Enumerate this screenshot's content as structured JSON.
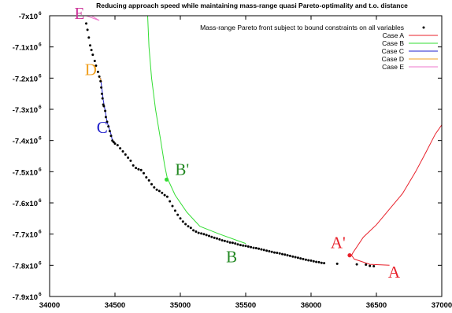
{
  "chart_data": {
    "type": "scatter",
    "title": "Reducing approach speed while maintaining mass-range quasi Pareto-optimality and t.o. distance",
    "xlabel": "",
    "ylabel": "",
    "xlim": [
      34000,
      37000
    ],
    "ylim": [
      -7900000,
      -7000000
    ],
    "x_ticks": [
      {
        "value": 34000,
        "label": "34000"
      },
      {
        "value": 34500,
        "label": "34500"
      },
      {
        "value": 35000,
        "label": "35000"
      },
      {
        "value": 35500,
        "label": "35500"
      },
      {
        "value": 36000,
        "label": "36000"
      },
      {
        "value": 36500,
        "label": "36500"
      },
      {
        "value": 37000,
        "label": "37000"
      }
    ],
    "y_ticks": [
      {
        "value": -7000000,
        "base": "-7x10",
        "exp": "6"
      },
      {
        "value": -7100000,
        "base": "-7.1x10",
        "exp": "6"
      },
      {
        "value": -7200000,
        "base": "-7.2x10",
        "exp": "6"
      },
      {
        "value": -7300000,
        "base": "-7.3x10",
        "exp": "6"
      },
      {
        "value": -7400000,
        "base": "-7.4x10",
        "exp": "6"
      },
      {
        "value": -7500000,
        "base": "-7.5x10",
        "exp": "6"
      },
      {
        "value": -7600000,
        "base": "-7.6x10",
        "exp": "6"
      },
      {
        "value": -7700000,
        "base": "-7.7x10",
        "exp": "6"
      },
      {
        "value": -7800000,
        "base": "-7.8x10",
        "exp": "6"
      },
      {
        "value": -7900000,
        "base": "-7.9x10",
        "exp": "6"
      }
    ],
    "grid": false,
    "legend_position": "top-right",
    "legend": [
      {
        "label": "Mass-range Pareto front subject to bound constraints on all variables",
        "kind": "point",
        "color": "#000000"
      },
      {
        "label": "Case A",
        "kind": "line",
        "color": "#e8202a"
      },
      {
        "label": "Case B",
        "kind": "line",
        "color": "#33dd33"
      },
      {
        "label": "Case C",
        "kind": "line",
        "color": "#2222cc"
      },
      {
        "label": "Case D",
        "kind": "line",
        "color": "#f0a020"
      },
      {
        "label": "Case E",
        "kind": "line",
        "color": "#ee77cc"
      }
    ],
    "pareto_points": [
      [
        34280,
        -7025000
      ],
      [
        34290,
        -7045000
      ],
      [
        34300,
        -7070000
      ],
      [
        34310,
        -7095000
      ],
      [
        34320,
        -7110000
      ],
      [
        34330,
        -7125000
      ],
      [
        34345,
        -7145000
      ],
      [
        34355,
        -7160000
      ],
      [
        34370,
        -7180000
      ],
      [
        34380,
        -7195000
      ],
      [
        34390,
        -7210000
      ],
      [
        34395,
        -7230000
      ],
      [
        34400,
        -7250000
      ],
      [
        34405,
        -7265000
      ],
      [
        34410,
        -7285000
      ],
      [
        34415,
        -7290000
      ],
      [
        34425,
        -7305000
      ],
      [
        34430,
        -7325000
      ],
      [
        34440,
        -7340000
      ],
      [
        34450,
        -7355000
      ],
      [
        34460,
        -7370000
      ],
      [
        34470,
        -7385000
      ],
      [
        34480,
        -7400000
      ],
      [
        34490,
        -7405000
      ],
      [
        34500,
        -7410000
      ],
      [
        34520,
        -7415000
      ],
      [
        34540,
        -7425000
      ],
      [
        34560,
        -7435000
      ],
      [
        34580,
        -7445000
      ],
      [
        34600,
        -7455000
      ],
      [
        34620,
        -7465000
      ],
      [
        34640,
        -7480000
      ],
      [
        34660,
        -7488000
      ],
      [
        34680,
        -7492000
      ],
      [
        34700,
        -7495000
      ],
      [
        34720,
        -7505000
      ],
      [
        34740,
        -7518000
      ],
      [
        34760,
        -7528000
      ],
      [
        34780,
        -7540000
      ],
      [
        34800,
        -7550000
      ],
      [
        34820,
        -7558000
      ],
      [
        34840,
        -7562000
      ],
      [
        34860,
        -7568000
      ],
      [
        34880,
        -7575000
      ],
      [
        34900,
        -7580000
      ],
      [
        34920,
        -7595000
      ],
      [
        34940,
        -7610000
      ],
      [
        34960,
        -7625000
      ],
      [
        34980,
        -7638000
      ],
      [
        35000,
        -7650000
      ],
      [
        35020,
        -7660000
      ],
      [
        35040,
        -7668000
      ],
      [
        35060,
        -7675000
      ],
      [
        35080,
        -7680000
      ],
      [
        35100,
        -7688000
      ],
      [
        35120,
        -7692000
      ],
      [
        35140,
        -7696000
      ],
      [
        35160,
        -7698000
      ],
      [
        35180,
        -7700000
      ],
      [
        35200,
        -7703000
      ],
      [
        35220,
        -7706000
      ],
      [
        35240,
        -7709000
      ],
      [
        35260,
        -7712000
      ],
      [
        35280,
        -7714000
      ],
      [
        35300,
        -7717000
      ],
      [
        35320,
        -7720000
      ],
      [
        35340,
        -7722000
      ],
      [
        35360,
        -7724000
      ],
      [
        35380,
        -7727000
      ],
      [
        35400,
        -7728000
      ],
      [
        35420,
        -7730000
      ],
      [
        35440,
        -7733000
      ],
      [
        35460,
        -7735000
      ],
      [
        35480,
        -7737000
      ],
      [
        35500,
        -7738000
      ],
      [
        35520,
        -7740000
      ],
      [
        35540,
        -7742000
      ],
      [
        35560,
        -7744000
      ],
      [
        35580,
        -7745000
      ],
      [
        35600,
        -7747000
      ],
      [
        35620,
        -7749000
      ],
      [
        35640,
        -7751000
      ],
      [
        35660,
        -7753000
      ],
      [
        35680,
        -7755000
      ],
      [
        35700,
        -7757000
      ],
      [
        35720,
        -7759000
      ],
      [
        35740,
        -7760000
      ],
      [
        35760,
        -7762000
      ],
      [
        35780,
        -7764000
      ],
      [
        35800,
        -7766000
      ],
      [
        35820,
        -7768000
      ],
      [
        35840,
        -7770000
      ],
      [
        35860,
        -7772000
      ],
      [
        35880,
        -7774000
      ],
      [
        35900,
        -7776000
      ],
      [
        35920,
        -7778000
      ],
      [
        35940,
        -7780000
      ],
      [
        35960,
        -7782000
      ],
      [
        35980,
        -7784000
      ],
      [
        36000,
        -7785000
      ],
      [
        36020,
        -7787000
      ],
      [
        36040,
        -7789000
      ],
      [
        36060,
        -7790000
      ],
      [
        36080,
        -7792000
      ],
      [
        36100,
        -7793000
      ],
      [
        36200,
        -7795000
      ],
      [
        36350,
        -7797000
      ],
      [
        36420,
        -7798000
      ],
      [
        36450,
        -7802000
      ],
      [
        36480,
        -7803000
      ]
    ],
    "series": [
      {
        "name": "Case A",
        "color": "#e8202a",
        "points": [
          [
            36600,
            -7800000
          ],
          [
            36450,
            -7797000
          ],
          [
            36330,
            -7780000
          ],
          [
            36310,
            -7768000
          ],
          [
            36320,
            -7760000
          ],
          [
            36400,
            -7710000
          ],
          [
            36500,
            -7670000
          ],
          [
            36600,
            -7620000
          ],
          [
            36700,
            -7570000
          ],
          [
            36800,
            -7500000
          ],
          [
            36870,
            -7445000
          ],
          [
            36950,
            -7380000
          ],
          [
            37000,
            -7350000
          ]
        ]
      },
      {
        "name": "Case B",
        "color": "#33dd33",
        "points": [
          [
            34750,
            -7000000
          ],
          [
            34760,
            -7100000
          ],
          [
            34780,
            -7200000
          ],
          [
            34810,
            -7300000
          ],
          [
            34850,
            -7400000
          ],
          [
            34880,
            -7480000
          ],
          [
            34900,
            -7520000
          ],
          [
            34960,
            -7575000
          ],
          [
            35050,
            -7630000
          ],
          [
            35150,
            -7675000
          ],
          [
            35300,
            -7700000
          ],
          [
            35500,
            -7730000
          ]
        ]
      },
      {
        "name": "Case C",
        "color": "#2222cc",
        "points": [
          [
            34390,
            -7200000
          ],
          [
            34410,
            -7270000
          ],
          [
            34440,
            -7340000
          ],
          [
            34470,
            -7380000
          ],
          [
            34480,
            -7400000
          ]
        ]
      },
      {
        "name": "Case D",
        "color": "#f0a020",
        "points": [
          [
            34380,
            -7195000
          ],
          [
            34400,
            -7212000
          ]
        ]
      },
      {
        "name": "Case E",
        "color": "#ee77cc",
        "points": [
          [
            34280,
            -7000000
          ],
          [
            34380,
            -7015000
          ],
          [
            34320,
            -7000000
          ]
        ]
      }
    ],
    "highlight_points": [
      {
        "label": "B'",
        "x": 34895,
        "y": -7525000,
        "color": "#33dd33"
      },
      {
        "label": "A'",
        "x": 36295,
        "y": -7768000,
        "color": "#e8202a"
      }
    ],
    "annotations": [
      {
        "text": "E",
        "x": 34190,
        "y": -7010000,
        "color": "#cc3399"
      },
      {
        "text": "D",
        "x": 34270,
        "y": -7190000,
        "color": "#f0a020"
      },
      {
        "text": "C",
        "x": 34360,
        "y": -7375000,
        "color": "#2222cc"
      },
      {
        "text": "B'",
        "x": 34960,
        "y": -7510000,
        "color": "#228822"
      },
      {
        "text": "B",
        "x": 35350,
        "y": -7790000,
        "color": "#228822"
      },
      {
        "text": "A'",
        "x": 36150,
        "y": -7745000,
        "color": "#e8202a"
      },
      {
        "text": "A",
        "x": 36590,
        "y": -7840000,
        "color": "#e8202a"
      }
    ]
  }
}
